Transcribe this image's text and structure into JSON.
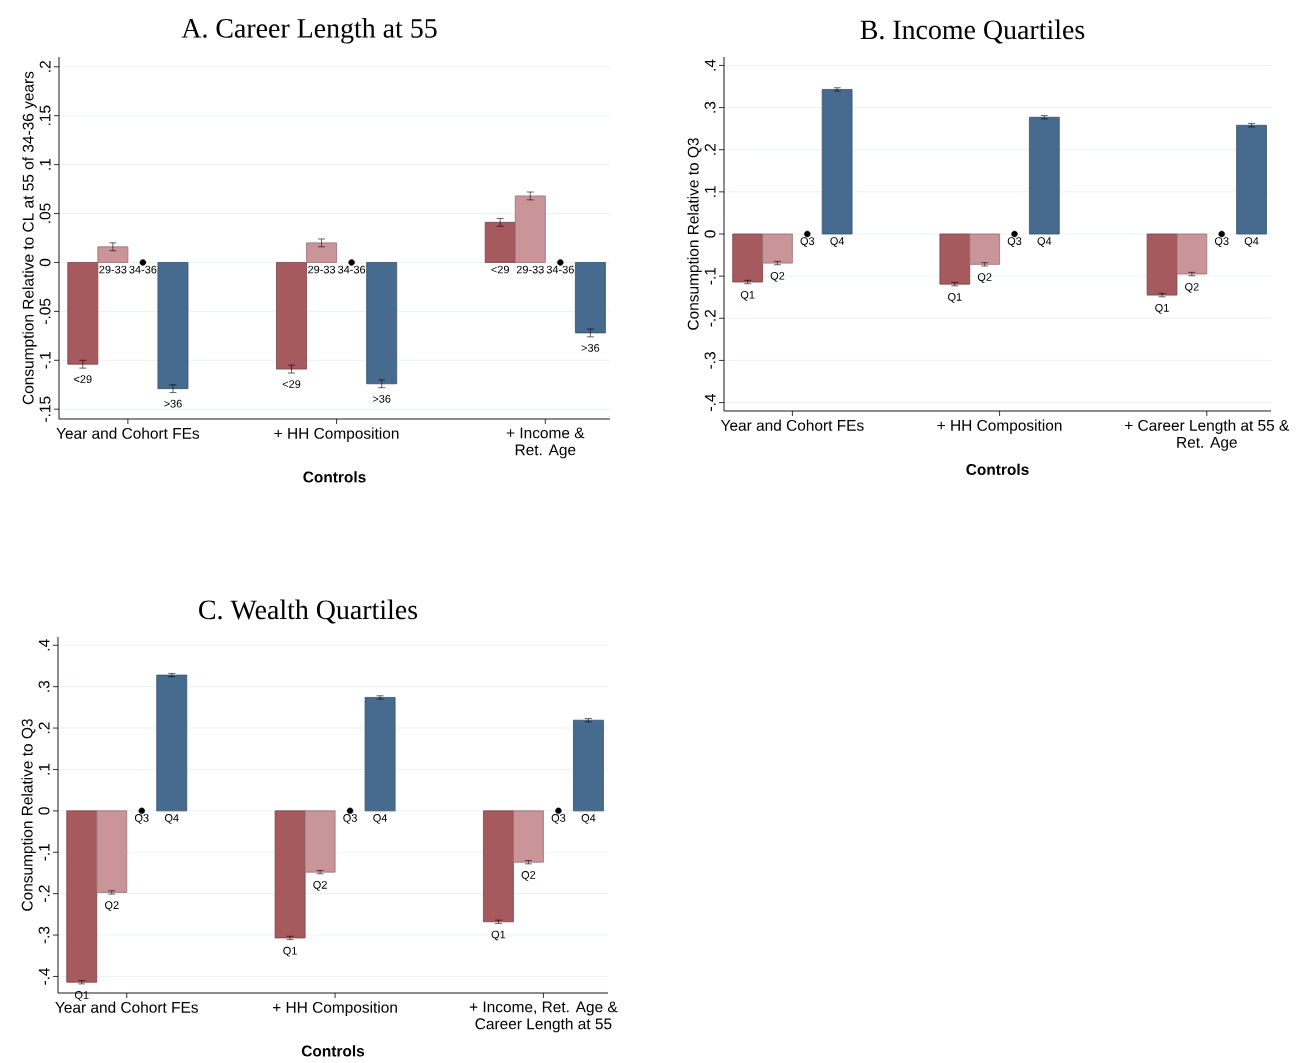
{
  "chart_data": [
    {
      "type": "bar",
      "title": "A. Career Length at 55",
      "xlabel": "Controls",
      "ylabel": "Consumption Relative to CL at 55 of 34-36 years",
      "categories": [
        "Year and Cohort FEs",
        "+ HH Composition",
        "+ Income & Ret. Age"
      ],
      "ylim": [
        -0.16,
        0.21
      ],
      "yticks": [
        {
          "value": -0.15,
          "label": "-.15"
        },
        {
          "value": -0.1,
          "label": "-.1"
        },
        {
          "value": -0.05,
          "label": "-.05"
        },
        0,
        {
          "value": 0.05,
          "label": ".05"
        },
        {
          "value": 0.1,
          "label": ".1"
        },
        {
          "value": 0.15,
          "label": ".15"
        },
        {
          "value": 0.2,
          "label": ".2"
        }
      ],
      "grid": "y",
      "legend": false,
      "series": [
        {
          "name": "<29",
          "color": "#a65a5e",
          "values": [
            -0.104,
            -0.109,
            0.041
          ],
          "errors": [
            0.004,
            0.004,
            0.004
          ]
        },
        {
          "name": "29-33",
          "color": "#c99598",
          "values": [
            0.016,
            0.02,
            0.068
          ],
          "errors": [
            0.004,
            0.004,
            0.004
          ]
        },
        {
          "name": "34-36",
          "type": "scatter",
          "marker": "circle",
          "color": "#000000",
          "values": [
            0,
            0,
            0
          ]
        },
        {
          "name": ">36",
          "color": "#466b8e",
          "values": [
            -0.129,
            -0.124,
            -0.072
          ],
          "errors": [
            0.004,
            0.004,
            0.004
          ]
        }
      ]
    },
    {
      "type": "bar",
      "title": "B. Income Quartiles",
      "xlabel": "Controls",
      "ylabel": "Consumption Relative to Q3",
      "categories": [
        "Year and Cohort FEs",
        "+ HH Composition",
        "+ Career Length at 55 & Ret. Age"
      ],
      "ylim": [
        -0.42,
        0.42
      ],
      "yticks": [
        {
          "value": -0.4,
          "label": "-.4"
        },
        {
          "value": -0.3,
          "label": "-.3"
        },
        {
          "value": -0.2,
          "label": "-.2"
        },
        {
          "value": -0.1,
          "label": "-.1"
        },
        0,
        {
          "value": 0.1,
          "label": ".1"
        },
        {
          "value": 0.2,
          "label": ".2"
        },
        {
          "value": 0.3,
          "label": ".3"
        },
        {
          "value": 0.4,
          "label": ".4"
        }
      ],
      "grid": "y",
      "legend": false,
      "series": [
        {
          "name": "Q1",
          "color": "#a65a5e",
          "values": [
            -0.114,
            -0.119,
            -0.145
          ],
          "errors": [
            0.004,
            0.004,
            0.004
          ]
        },
        {
          "name": "Q2",
          "color": "#c99598",
          "values": [
            -0.069,
            -0.072,
            -0.095
          ],
          "errors": [
            0.004,
            0.004,
            0.004
          ]
        },
        {
          "name": "Q3",
          "type": "scatter",
          "marker": "circle",
          "color": "#000000",
          "values": [
            0,
            0,
            0
          ]
        },
        {
          "name": "Q4",
          "color": "#466b8e",
          "values": [
            0.343,
            0.277,
            0.258
          ],
          "errors": [
            0.004,
            0.004,
            0.004
          ]
        }
      ]
    },
    {
      "type": "bar",
      "title": "C. Wealth Quartiles",
      "xlabel": "Controls",
      "ylabel": "Consumption Relative to Q3",
      "categories": [
        "Year and Cohort FEs",
        "+ HH Composition",
        "+ Income, Ret. Age & Career Length at 55"
      ],
      "ylim": [
        -0.44,
        0.42
      ],
      "yticks": [
        {
          "value": -0.4,
          "label": "-.4"
        },
        {
          "value": -0.3,
          "label": "-.3"
        },
        {
          "value": -0.2,
          "label": "-.2"
        },
        {
          "value": -0.1,
          "label": "-.1"
        },
        0,
        {
          "value": 0.1,
          "label": ".1"
        },
        {
          "value": 0.2,
          "label": ".2"
        },
        {
          "value": 0.3,
          "label": ".3"
        },
        {
          "value": 0.4,
          "label": ".4"
        }
      ],
      "grid": "y",
      "legend": false,
      "series": [
        {
          "name": "Q1",
          "color": "#a65a5e",
          "values": [
            -0.414,
            -0.307,
            -0.268
          ],
          "errors": [
            0.004,
            0.004,
            0.004
          ]
        },
        {
          "name": "Q2",
          "color": "#c99598",
          "values": [
            -0.197,
            -0.148,
            -0.124
          ],
          "errors": [
            0.004,
            0.004,
            0.004
          ]
        },
        {
          "name": "Q3",
          "type": "scatter",
          "marker": "circle",
          "color": "#000000",
          "values": [
            0,
            0,
            0
          ]
        },
        {
          "name": "Q4",
          "color": "#466b8e",
          "values": [
            0.328,
            0.274,
            0.219
          ],
          "errors": [
            0.004,
            0.004,
            0.004
          ]
        }
      ]
    }
  ]
}
